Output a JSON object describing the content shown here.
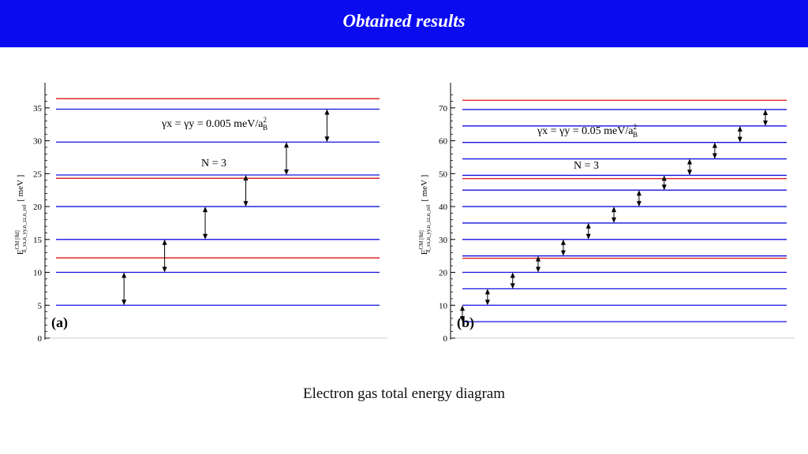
{
  "header": {
    "title": "Obtained results"
  },
  "caption": "Electron gas total energy diagram",
  "colors": {
    "header_bg": "#0b0bf0",
    "level_blue": "#1010e0",
    "level_red": "#e01010"
  },
  "chart_data": [
    {
      "type": "energy-level-diagram",
      "panel_label": "(a)",
      "ylabel": "E",
      "ylabel_parts": {
        "sup": "CM [8d]",
        "sub": "n_xx,n_yy,n_zz,n_rel",
        "unit": "[ meV ]"
      },
      "ylim": [
        0,
        37.5
      ],
      "yticks": [
        0,
        5,
        10,
        15,
        20,
        25,
        30,
        35
      ],
      "annotation_param": "γx = γy = 0.005 meV/a",
      "annotation_param_sup": "2",
      "annotation_param_sub": "B",
      "annotation_n": "N = 3",
      "blue_levels": [
        5,
        10,
        15,
        20,
        24.8,
        29.8,
        34.8
      ],
      "red_levels": [
        12.2,
        24.3,
        36.4
      ],
      "arrows": [
        {
          "x": 0.12,
          "y1": 5,
          "y2": 10
        },
        {
          "x": 0.27,
          "y1": 10,
          "y2": 15
        },
        {
          "x": 0.42,
          "y1": 15,
          "y2": 20
        },
        {
          "x": 0.57,
          "y1": 20,
          "y2": 24.8
        },
        {
          "x": 0.72,
          "y1": 24.8,
          "y2": 29.8
        },
        {
          "x": 0.87,
          "y1": 29.8,
          "y2": 34.8
        }
      ]
    },
    {
      "type": "energy-level-diagram",
      "panel_label": "(b)",
      "ylabel": "E",
      "ylabel_parts": {
        "sup": "CM [8d]",
        "sub": "n_xx,n_yy,n_zz,n_rel",
        "unit": "[ meV ]"
      },
      "ylim": [
        0,
        75
      ],
      "yticks": [
        0,
        10,
        20,
        30,
        40,
        50,
        60,
        70
      ],
      "annotation_param": "γx = γy = 0.05 meV/a",
      "annotation_param_sup": "2",
      "annotation_param_sub": "B",
      "annotation_n": "N = 3",
      "blue_levels": [
        5,
        10,
        15,
        20,
        25,
        30,
        35,
        40,
        45,
        49.5,
        54.5,
        59.5,
        64.5,
        69.5
      ],
      "red_levels": [
        24.3,
        48.5,
        72.3
      ],
      "arrows": [
        {
          "x": 0.0,
          "y1": 5,
          "y2": 10
        },
        {
          "x": 0.083,
          "y1": 10,
          "y2": 15
        },
        {
          "x": 0.166,
          "y1": 15,
          "y2": 20
        },
        {
          "x": 0.25,
          "y1": 20,
          "y2": 25
        },
        {
          "x": 0.333,
          "y1": 25,
          "y2": 30
        },
        {
          "x": 0.416,
          "y1": 30,
          "y2": 35
        },
        {
          "x": 0.5,
          "y1": 35,
          "y2": 40
        },
        {
          "x": 0.583,
          "y1": 40,
          "y2": 45
        },
        {
          "x": 0.666,
          "y1": 45,
          "y2": 49.5
        },
        {
          "x": 0.75,
          "y1": 49.5,
          "y2": 54.5
        },
        {
          "x": 0.833,
          "y1": 54.5,
          "y2": 59.5
        },
        {
          "x": 0.916,
          "y1": 59.5,
          "y2": 64.5
        },
        {
          "x": 1.0,
          "y1": 64.5,
          "y2": 69.5
        }
      ]
    }
  ]
}
